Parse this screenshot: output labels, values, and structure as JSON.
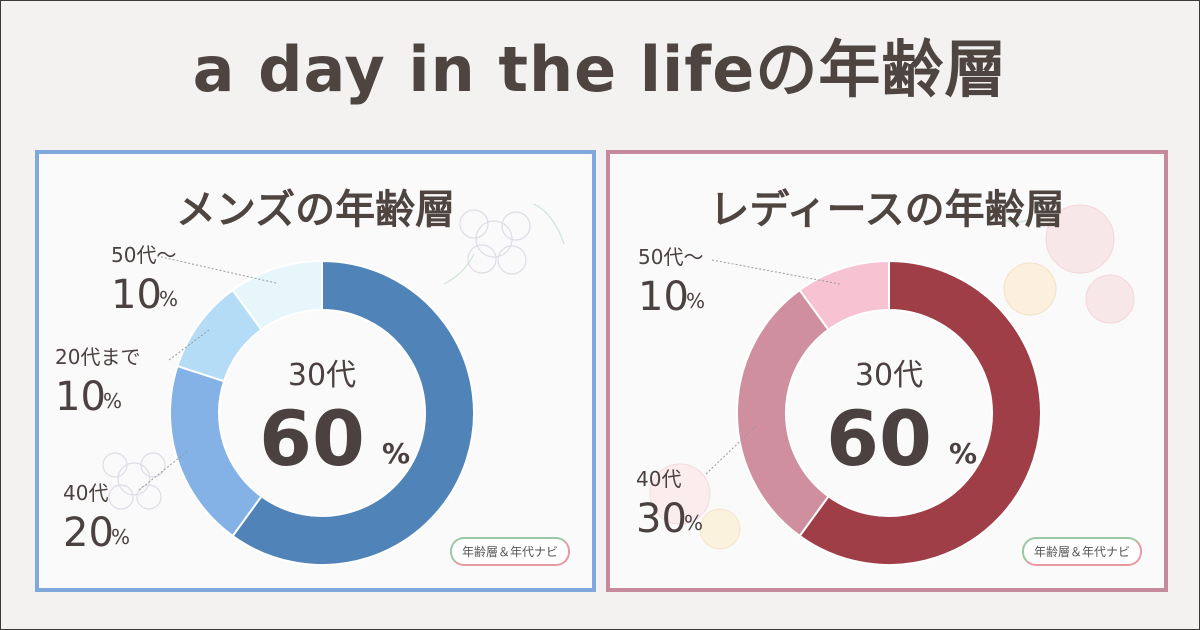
{
  "title": "a day in the lifeの年齢層",
  "credit": "年齢層＆年代ナビ",
  "chart_data": [
    {
      "type": "pie",
      "title": "メンズの年齢層",
      "percent_suffix": "%",
      "center": {
        "label": "30代",
        "value": "60"
      },
      "slices": [
        {
          "label": "30代",
          "value": 60,
          "color": "#5083b8"
        },
        {
          "label": "40代",
          "value": 20,
          "color": "#84b2e6"
        },
        {
          "label": "20代まで",
          "value": 10,
          "color": "#b5dcf6"
        },
        {
          "label": "50代～",
          "value": 10,
          "color": "#e6f6fb"
        }
      ],
      "labels": [
        {
          "category": "50代～",
          "value": "10"
        },
        {
          "category": "20代まで",
          "value": "10"
        },
        {
          "category": "40代",
          "value": "20"
        }
      ]
    },
    {
      "type": "pie",
      "title": "レディースの年齢層",
      "percent_suffix": "%",
      "center": {
        "label": "30代",
        "value": "60"
      },
      "slices": [
        {
          "label": "30代",
          "value": 60,
          "color": "#a03e47"
        },
        {
          "label": "40代",
          "value": 30,
          "color": "#d08f9f"
        },
        {
          "label": "50代～",
          "value": 10,
          "color": "#f7c3d3"
        }
      ],
      "labels": [
        {
          "category": "50代～",
          "value": "10"
        },
        {
          "category": "40代",
          "value": "30"
        }
      ]
    }
  ]
}
